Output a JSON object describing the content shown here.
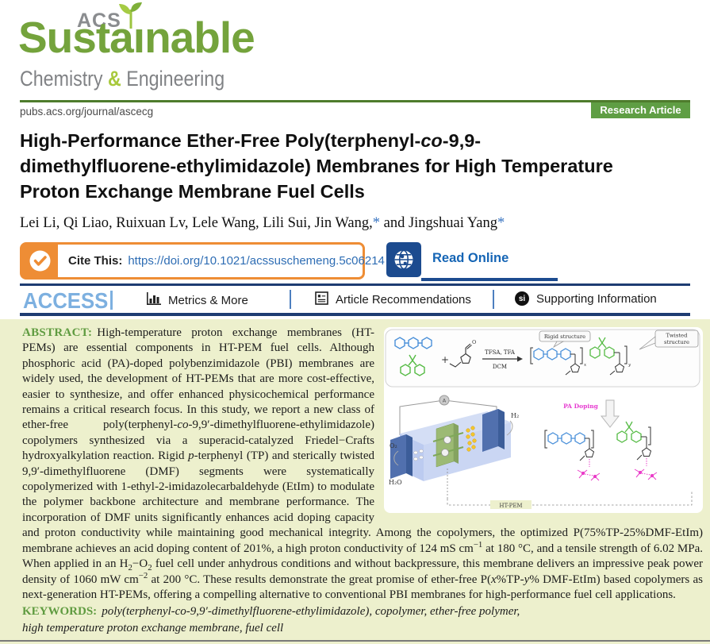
{
  "header": {
    "acs": "ACS",
    "journal_name_pre": "Susta",
    "journal_name_i": "ı",
    "journal_name_post": "nable",
    "sub_chemistry": "Chemistry",
    "sub_amp": "&",
    "sub_engineering": "Engineering",
    "url": "pubs.acs.org/journal/ascecg",
    "badge": "Research Article"
  },
  "article": {
    "title_segments": [
      {
        "t": "High-Performance Ether-Free Poly(terphenyl-"
      },
      {
        "t": "co",
        "s": "i"
      },
      {
        "t": "-9,9-\ndimethylfluorene-ethylimidazole) Membranes for High Temperature\nProton Exchange Membrane Fuel Cells"
      }
    ],
    "author_segments": [
      {
        "t": "Lei Li, Qi Liao, Ruixuan Lv, Lele Wang, Lili Sui, Jin Wang,"
      },
      {
        "t": "*",
        "s": "star"
      },
      {
        "t": " and Jingshuai Yang"
      },
      {
        "t": "*",
        "s": "star"
      }
    ]
  },
  "cite": {
    "label": "Cite This:",
    "doi": "https://doi.org/10.1021/acssuschemeng.5c06214",
    "read_online": "Read Online"
  },
  "access_bar": {
    "access": "ACCESS",
    "metrics": "Metrics & More",
    "recommendations": "Article Recommendations",
    "supporting": "Supporting Information",
    "si_badge": "si"
  },
  "abstract": {
    "label": "ABSTRACT:",
    "segments": [
      {
        "t": "High-temperature proton exchange membranes (HT-PEMs) are essential components in HT-PEM fuel cells. Although phosphoric acid (PA)-doped polybenzimidazole (PBI) membranes are widely used, the development of HT-PEMs that are more cost-effective, easier to synthesize, and offer enhanced physicochemical performance remains a critical research focus. In this study, we report a new class of ether-free poly(terphenyl-"
      },
      {
        "t": "co",
        "s": "i"
      },
      {
        "t": "-9,9′-dimethylfluorene-ethylimidazole) copolymers synthesized via a superacid-catalyzed Friedel−Crafts hydroxyalkylation reaction. Rigid "
      },
      {
        "t": "p",
        "s": "i"
      },
      {
        "t": "-terphenyl (TP) and sterically twisted 9,9′-dimethylfluorene (DMF) segments were systematically copolymerized with 1-ethyl-2-imidazolecarbaldehyde (EtIm) to modulate the polymer backbone architecture and membrane performance. The incorporation of DMF units significantly enhances acid doping capacity and proton conductivity while maintaining good mechanical integrity. Among the copolymers, the optimized P(75%TP-25%DMF-EtIm) membrane achieves an acid doping content of 201%, a high proton conductivity of 124 mS cm"
      },
      {
        "t": "−1",
        "s": "sup"
      },
      {
        "t": " at 180 °C, and a tensile strength of 6.02 MPa. When applied in an H"
      },
      {
        "t": "2",
        "s": "sub"
      },
      {
        "t": "−O"
      },
      {
        "t": "2",
        "s": "sub"
      },
      {
        "t": " fuel cell under anhydrous conditions and without backpressure, this membrane delivers an impressive peak power density of 1060 mW cm"
      },
      {
        "t": "−2",
        "s": "sup"
      },
      {
        "t": " at 200 °C. These results demonstrate the great promise of ether-free P("
      },
      {
        "t": "x",
        "s": "i"
      },
      {
        "t": "%TP-"
      },
      {
        "t": "y",
        "s": "i"
      },
      {
        "t": "% DMF-EtIm) based copolymers as next-generation HT-PEMs, offering a compelling alternative to conventional PBI membranes for high-performance fuel cell applications."
      }
    ]
  },
  "keywords": {
    "label": "KEYWORDS:",
    "text": "poly(terphenyl-co-9,9′-dimethylfluorene-ethylimidazole), copolymer, ether-free polymer,\nhigh temperature proton exchange membrane, fuel cell"
  },
  "graphic": {
    "rigid": "Rigid structure",
    "twisted_line1": "Twisted",
    "twisted_line2": "structure",
    "reagent_top": "TFSA, TFA",
    "reagent_bottom": "DCM",
    "plus": "+",
    "pa_doping": "PA Doping",
    "ht_pem": "HT-PEM",
    "h2": "H₂",
    "o2": "O₂",
    "h2o": "H₂O",
    "ammeter": "A",
    "aldehyde_o": "O"
  },
  "colors": {
    "accent_green": "#5f9e44",
    "logo_green": "#74a33c",
    "abstract_bg": "#edf0cd",
    "navy": "#1c4b8f",
    "orange": "#ee8d35",
    "link_blue": "#2e6db4",
    "magenta": "#e63bd0"
  }
}
